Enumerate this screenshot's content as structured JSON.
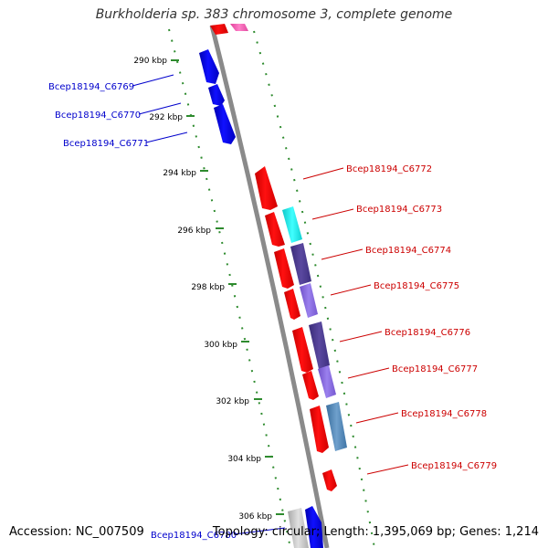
{
  "title": "Burkholderia sp. 383 chromosome 3, complete genome",
  "footer": {
    "accession": "Accession: NC_007509",
    "topology": "Topology: circular; Length: 1,395,069 bp; Genes: 1,214"
  },
  "colors": {
    "backbone": "#888888",
    "tick": "#2e8b2e",
    "forward_gene": "#0000ee",
    "reverse_gene": "#ff0000",
    "label_forward": "#0000cc",
    "label_reverse": "#cc0000",
    "cyan": "#22eeee",
    "dark_purple": "#4b3b8c",
    "light_purple": "#8866dd",
    "steel_blue": "#4682b4"
  },
  "ticks": [
    "290 kbp",
    "292 kbp",
    "294 kbp",
    "296 kbp",
    "298 kbp",
    "300 kbp",
    "302 kbp",
    "304 kbp",
    "306 kbp"
  ],
  "gene_labels": {
    "left": [
      "Bcep18194_C6769",
      "Bcep18194_C6770",
      "Bcep18194_C6771",
      "Bcep18194_C6780"
    ],
    "right": [
      "Bcep18194_C6772",
      "Bcep18194_C6773",
      "Bcep18194_C6774",
      "Bcep18194_C6775",
      "Bcep18194_C6776",
      "Bcep18194_C6777",
      "Bcep18194_C6778",
      "Bcep18194_C6779"
    ]
  }
}
